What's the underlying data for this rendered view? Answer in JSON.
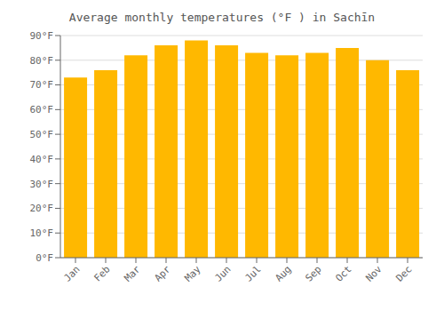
{
  "chart_data": {
    "type": "bar",
    "title": "Average monthly temperatures (°F ) in Sachīn",
    "categories": [
      "Jan",
      "Feb",
      "Mar",
      "Apr",
      "May",
      "Jun",
      "Jul",
      "Aug",
      "Sep",
      "Oct",
      "Nov",
      "Dec"
    ],
    "values": [
      73,
      76,
      82,
      86,
      88,
      86,
      83,
      82,
      83,
      85,
      80,
      76
    ],
    "color": "#FFB800",
    "ylim": [
      0,
      90
    ],
    "yticks": [
      {
        "value": 0,
        "label": "0°F"
      },
      {
        "value": 10,
        "label": "10°F"
      },
      {
        "value": 20,
        "label": "20°F"
      },
      {
        "value": 30,
        "label": "30°F"
      },
      {
        "value": 40,
        "label": "40°F"
      },
      {
        "value": 50,
        "label": "50°F"
      },
      {
        "value": 60,
        "label": "60°F"
      },
      {
        "value": 70,
        "label": "70°F"
      },
      {
        "value": 80,
        "label": "80°F"
      },
      {
        "value": 90,
        "label": "90°F"
      }
    ],
    "grid": true
  }
}
